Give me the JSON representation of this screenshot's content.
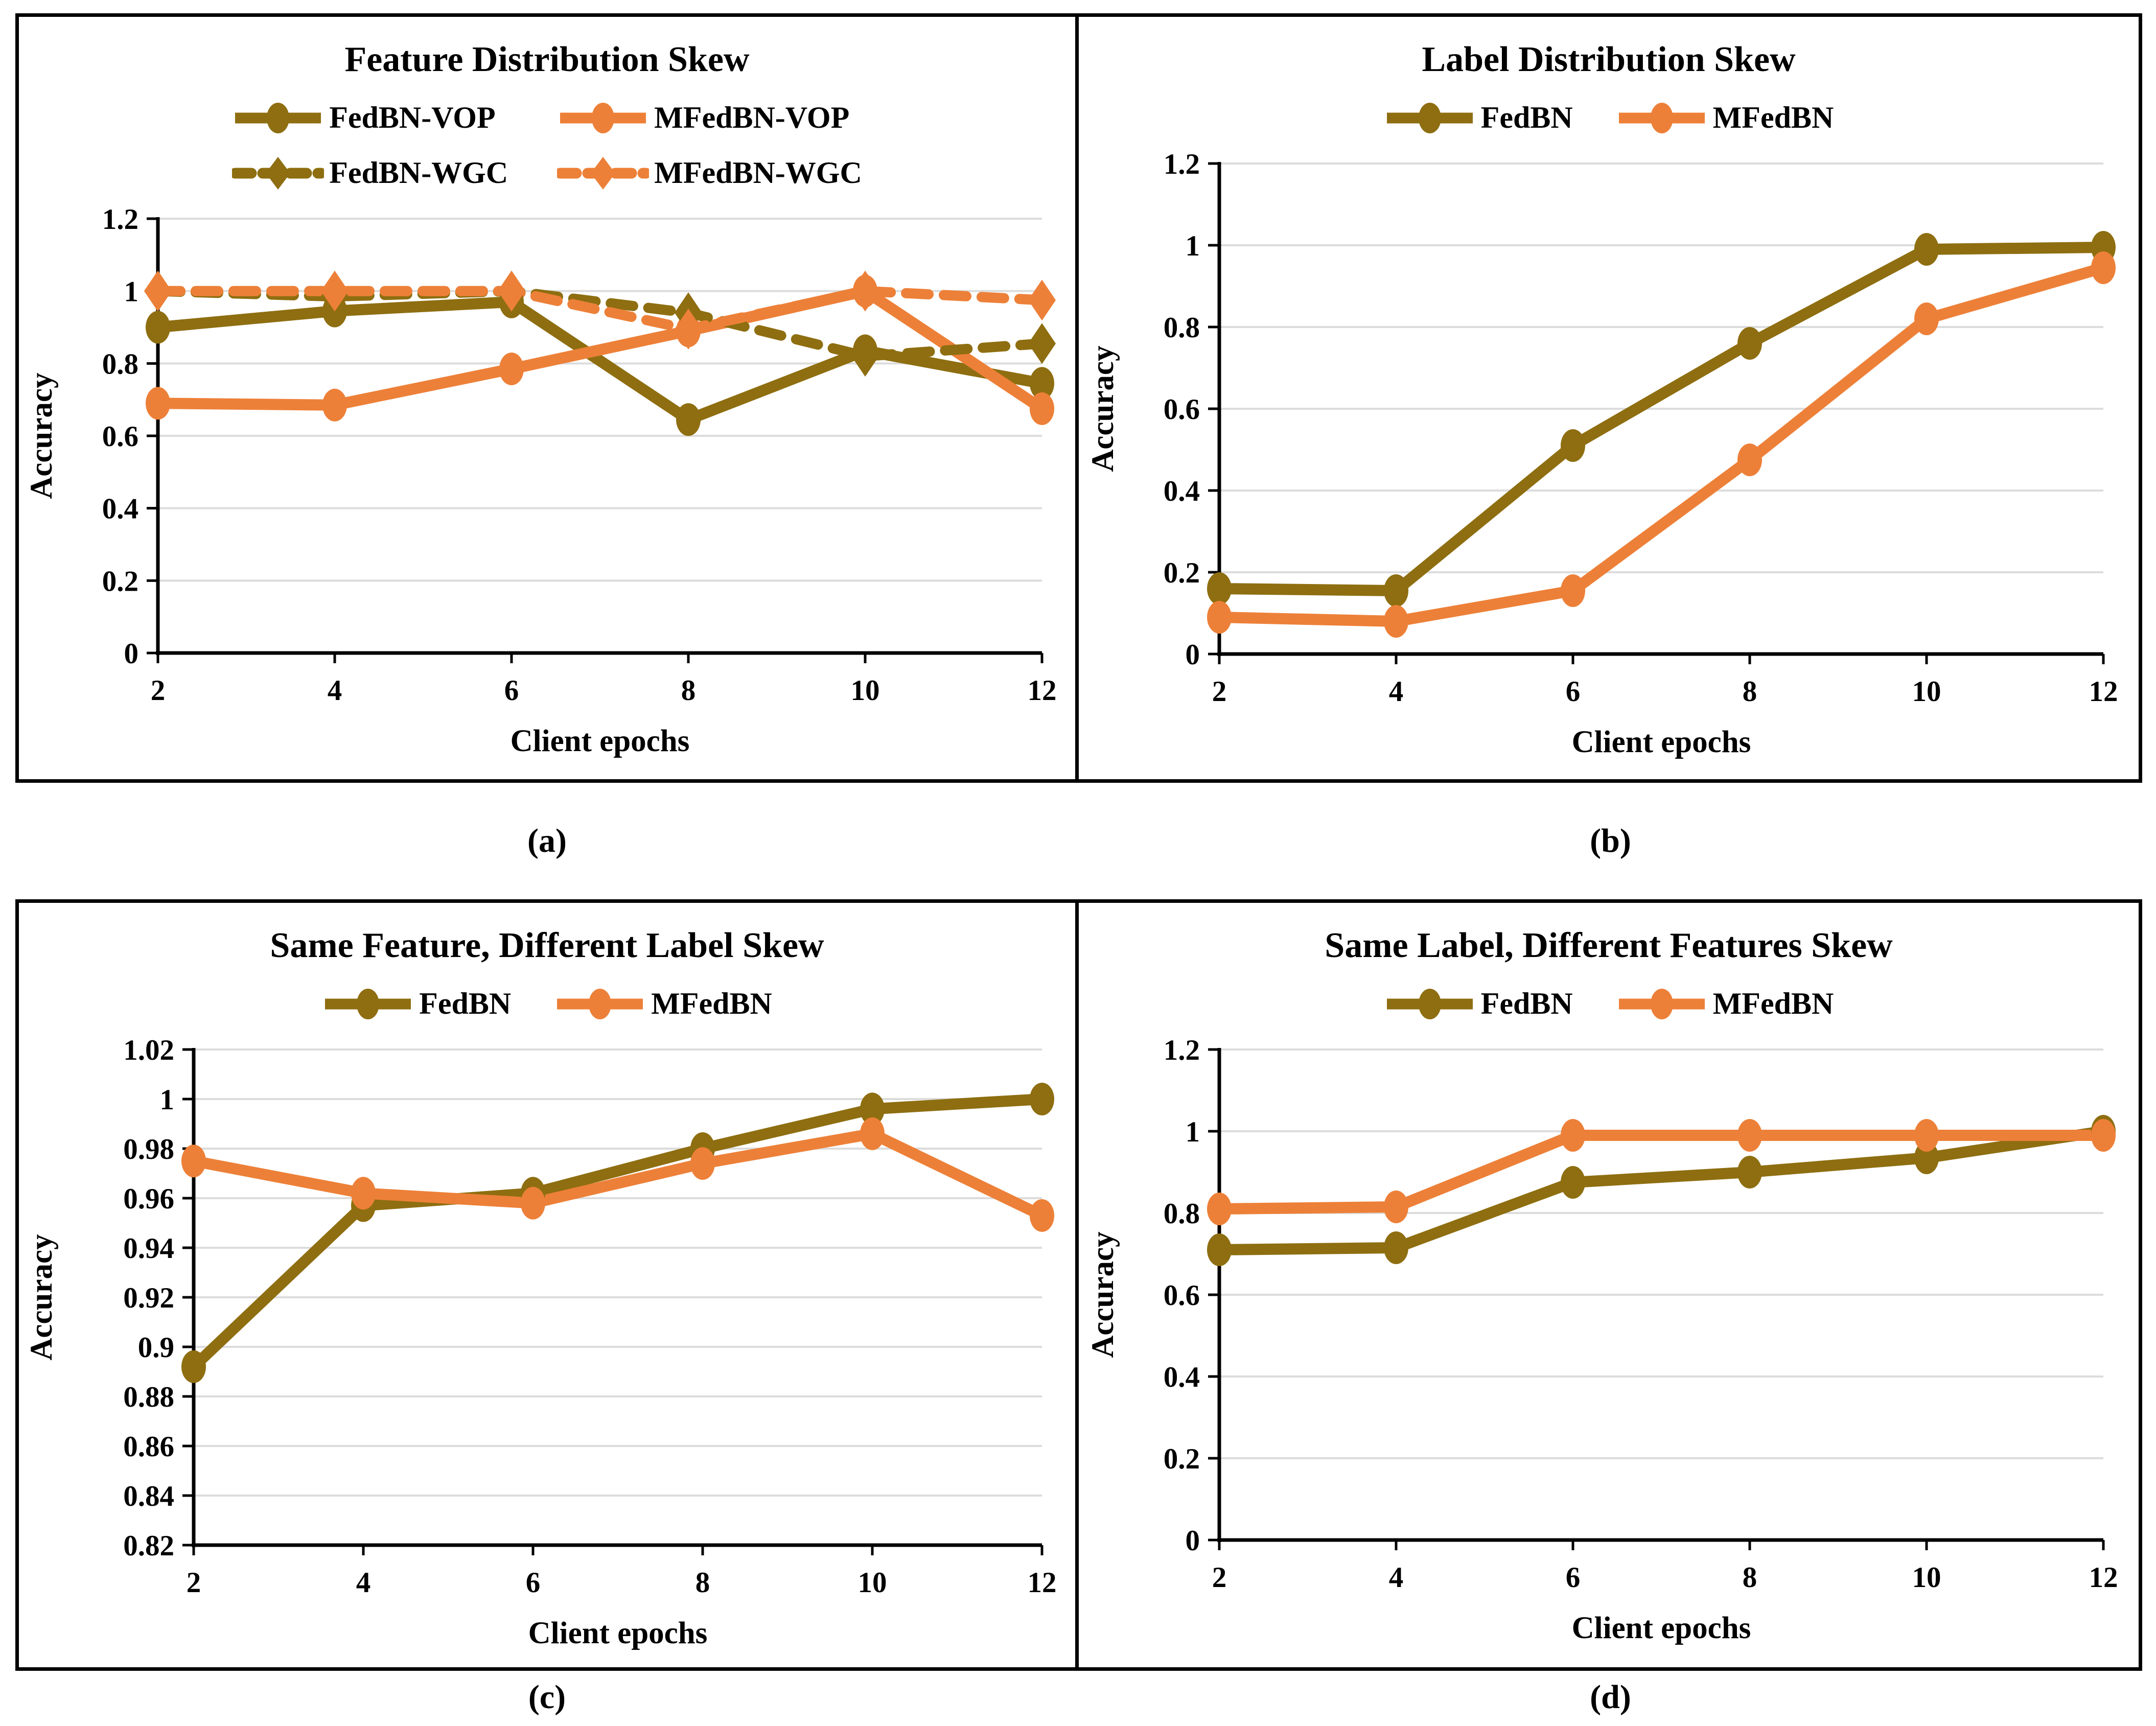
{
  "palette": {
    "olive": "#8E6E10",
    "orange": "#ED8038",
    "gridline": "#DCDCDC",
    "axis": "#000000",
    "text": "#000000"
  },
  "chart_data": [
    {
      "type": "line",
      "caption": "(a)",
      "title": "Feature Distribution Skew",
      "xlabel": "Client epochs",
      "ylabel": "Accuracy",
      "x": [
        2,
        4,
        6,
        8,
        10,
        12
      ],
      "xtick_labels": [
        "2",
        "4",
        "6",
        "8",
        "10",
        "12"
      ],
      "ylim": [
        0,
        1.2
      ],
      "yticks": [
        "0",
        "0.2",
        "0.4",
        "0.6",
        "0.8",
        "1",
        "1.2"
      ],
      "grid": "horizontal",
      "legend_position": "top",
      "legend_layout": "grid",
      "series": [
        {
          "name": "FedBN-VOP",
          "color": "olive",
          "style": "solid",
          "marker": "circle",
          "values": [
            0.9,
            0.945,
            0.97,
            0.645,
            0.835,
            0.745
          ]
        },
        {
          "name": "MFedBN-VOP",
          "color": "orange",
          "style": "solid",
          "marker": "circle",
          "values": [
            0.69,
            0.685,
            0.785,
            0.89,
            1.0,
            0.675
          ]
        },
        {
          "name": "FedBN-WGC",
          "color": "olive",
          "style": "dashed",
          "marker": "diamond",
          "values": [
            1.0,
            0.985,
            1.0,
            0.94,
            0.82,
            0.855
          ]
        },
        {
          "name": "MFedBN-WGC",
          "color": "orange",
          "style": "dashed",
          "marker": "diamond",
          "values": [
            1.0,
            1.0,
            1.0,
            0.895,
            1.0,
            0.975
          ]
        }
      ]
    },
    {
      "type": "line",
      "caption": "(b)",
      "title": "Label Distribution Skew",
      "xlabel": "Client epochs",
      "ylabel": "Accuracy",
      "x": [
        2,
        4,
        6,
        8,
        10,
        12
      ],
      "xtick_labels": [
        "2",
        "4",
        "6",
        "8",
        "10",
        "12"
      ],
      "ylim": [
        0,
        1.2
      ],
      "yticks": [
        "0",
        "0.2",
        "0.4",
        "0.6",
        "0.8",
        "1",
        "1.2"
      ],
      "grid": "horizontal",
      "legend_position": "top",
      "legend_layout": "row",
      "series": [
        {
          "name": "FedBN",
          "color": "olive",
          "style": "solid",
          "marker": "circle",
          "values": [
            0.16,
            0.155,
            0.51,
            0.76,
            0.99,
            0.995
          ]
        },
        {
          "name": "MFedBN",
          "color": "orange",
          "style": "solid",
          "marker": "circle",
          "values": [
            0.09,
            0.08,
            0.155,
            0.475,
            0.82,
            0.945
          ]
        }
      ]
    },
    {
      "type": "line",
      "caption": "(c)",
      "title": "Same Feature, Different Label Skew",
      "xlabel": "Client epochs",
      "ylabel": "Accuracy",
      "x": [
        2,
        4,
        6,
        8,
        10,
        12
      ],
      "xtick_labels": [
        "2",
        "4",
        "6",
        "8",
        "10",
        "12"
      ],
      "ylim": [
        0.82,
        1.02
      ],
      "yticks": [
        "0.82",
        "0.84",
        "0.86",
        "0.88",
        "0.9",
        "0.92",
        "0.94",
        "0.96",
        "0.98",
        "1",
        "1.02"
      ],
      "grid": "horizontal",
      "legend_position": "top",
      "legend_layout": "row",
      "series": [
        {
          "name": "FedBN",
          "color": "olive",
          "style": "solid",
          "marker": "circle",
          "values": [
            0.892,
            0.957,
            0.962,
            0.98,
            0.996,
            1.0
          ]
        },
        {
          "name": "MFedBN",
          "color": "orange",
          "style": "solid",
          "marker": "circle",
          "values": [
            0.975,
            0.962,
            0.958,
            0.974,
            0.986,
            0.953
          ]
        }
      ]
    },
    {
      "type": "line",
      "caption": "(d)",
      "title": "Same Label, Different Features Skew",
      "xlabel": "Client epochs",
      "ylabel": "Accuracy",
      "x": [
        2,
        4,
        6,
        8,
        10,
        12
      ],
      "xtick_labels": [
        "2",
        "4",
        "6",
        "8",
        "10",
        "12"
      ],
      "ylim": [
        0,
        1.2
      ],
      "yticks": [
        "0",
        "0.2",
        "0.4",
        "0.6",
        "0.8",
        "1",
        "1.2"
      ],
      "grid": "horizontal",
      "legend_position": "top",
      "legend_layout": "row",
      "series": [
        {
          "name": "FedBN",
          "color": "olive",
          "style": "solid",
          "marker": "circle",
          "values": [
            0.71,
            0.715,
            0.875,
            0.9,
            0.935,
            1.0
          ]
        },
        {
          "name": "MFedBN",
          "color": "orange",
          "style": "solid",
          "marker": "circle",
          "values": [
            0.81,
            0.815,
            0.99,
            0.99,
            0.99,
            0.99
          ]
        }
      ]
    }
  ]
}
